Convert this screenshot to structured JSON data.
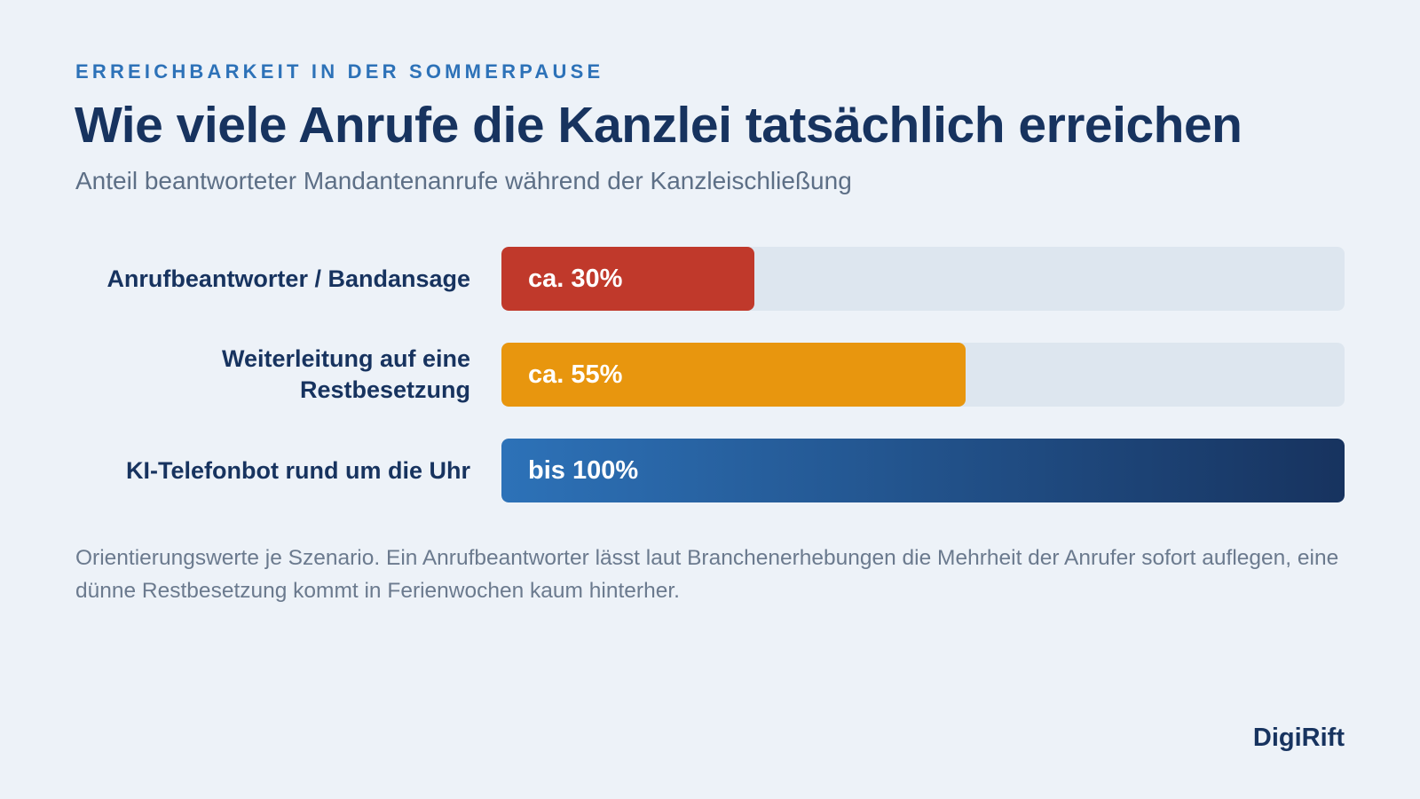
{
  "header": {
    "kicker": "ERREICHBARKEIT IN DER SOMMERPAUSE",
    "title": "Wie viele Anrufe die Kanzlei tatsächlich erreichen",
    "subtitle": "Anteil beantworteter Mandantenanrufe während der Kanzleischließung"
  },
  "chart_data": {
    "type": "bar",
    "orientation": "horizontal",
    "title": "Wie viele Anrufe die Kanzlei tatsächlich erreichen",
    "subtitle": "Anteil beantworteter Mandantenanrufe während der Kanzleischließung",
    "categories": [
      "Anrufbeantworter / Bandansage",
      "Weiterleitung auf eine Restbesetzung",
      "KI-Telefonbot rund um die Uhr"
    ],
    "values": [
      30,
      55,
      100
    ],
    "value_labels": [
      "ca. 30%",
      "ca. 55%",
      "bis 100%"
    ],
    "unit": "%",
    "xlim": [
      0,
      100
    ],
    "colors": [
      "#c0392b",
      "#e8960e",
      "#2d72b8"
    ],
    "gradient_end_color": "#17335f",
    "track_color": "#dde6ef",
    "grid": false,
    "legend": "none"
  },
  "note": "Orientierungswerte je Szenario. Ein Anrufbeantworter lässt laut Branchenerhebungen die Mehrheit der Anrufer sofort auflegen, eine dünne Restbesetzung kommt in Ferienwochen kaum hinterher.",
  "brand": "DigiRift"
}
